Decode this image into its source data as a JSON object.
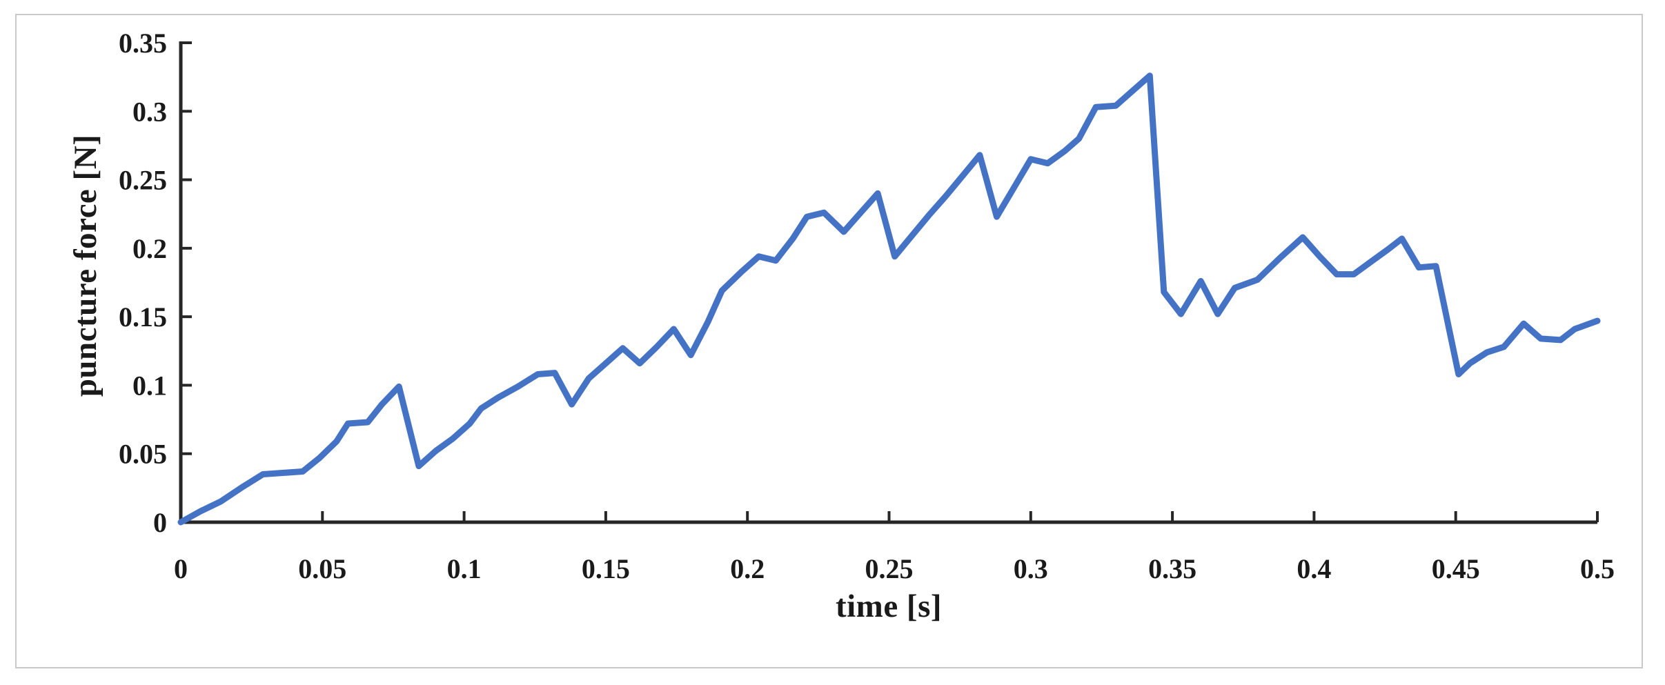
{
  "figure": {
    "background": "#ffffff",
    "frame_border_color": "#c9c9c9",
    "axis_color": "#262626",
    "text_color": "#1a1a1a"
  },
  "chart_data": {
    "type": "line",
    "title": "",
    "xlabel": "time [s]",
    "ylabel": "puncture force [N]",
    "xlim": [
      0,
      0.5
    ],
    "ylim": [
      0,
      0.35
    ],
    "grid": "off",
    "legend": "none",
    "tick_style": "inside",
    "line_color": "#4472C4",
    "x_ticks": [
      0,
      0.05,
      0.1,
      0.15,
      0.2,
      0.25,
      0.3,
      0.35,
      0.4,
      0.45,
      0.5
    ],
    "x_tick_labels": [
      "0",
      "0.05",
      "0.1",
      "0.15",
      "0.2",
      "0.25",
      "0.3",
      "0.35",
      "0.4",
      "0.45",
      "0.5"
    ],
    "y_ticks": [
      0,
      0.05,
      0.1,
      0.15,
      0.2,
      0.25,
      0.3,
      0.35
    ],
    "y_tick_labels": [
      "0",
      "0.05",
      "0.1",
      "0.15",
      "0.2",
      "0.25",
      "0.3",
      "0.35"
    ],
    "series": [
      {
        "name": "puncture force",
        "points": [
          [
            0.0,
            0.0
          ],
          [
            0.007,
            0.008
          ],
          [
            0.014,
            0.015
          ],
          [
            0.022,
            0.026
          ],
          [
            0.029,
            0.035
          ],
          [
            0.036,
            0.036
          ],
          [
            0.043,
            0.037
          ],
          [
            0.049,
            0.047
          ],
          [
            0.055,
            0.059
          ],
          [
            0.059,
            0.072
          ],
          [
            0.066,
            0.073
          ],
          [
            0.071,
            0.086
          ],
          [
            0.077,
            0.099
          ],
          [
            0.084,
            0.041
          ],
          [
            0.09,
            0.052
          ],
          [
            0.096,
            0.061
          ],
          [
            0.102,
            0.072
          ],
          [
            0.106,
            0.083
          ],
          [
            0.112,
            0.091
          ],
          [
            0.119,
            0.099
          ],
          [
            0.126,
            0.108
          ],
          [
            0.132,
            0.109
          ],
          [
            0.138,
            0.086
          ],
          [
            0.144,
            0.105
          ],
          [
            0.15,
            0.116
          ],
          [
            0.156,
            0.127
          ],
          [
            0.162,
            0.116
          ],
          [
            0.168,
            0.128
          ],
          [
            0.174,
            0.141
          ],
          [
            0.18,
            0.122
          ],
          [
            0.186,
            0.146
          ],
          [
            0.191,
            0.169
          ],
          [
            0.198,
            0.183
          ],
          [
            0.204,
            0.194
          ],
          [
            0.21,
            0.191
          ],
          [
            0.216,
            0.207
          ],
          [
            0.221,
            0.223
          ],
          [
            0.227,
            0.226
          ],
          [
            0.234,
            0.212
          ],
          [
            0.24,
            0.226
          ],
          [
            0.246,
            0.24
          ],
          [
            0.252,
            0.194
          ],
          [
            0.258,
            0.209
          ],
          [
            0.264,
            0.224
          ],
          [
            0.27,
            0.238
          ],
          [
            0.276,
            0.253
          ],
          [
            0.282,
            0.268
          ],
          [
            0.288,
            0.223
          ],
          [
            0.294,
            0.244
          ],
          [
            0.3,
            0.265
          ],
          [
            0.306,
            0.262
          ],
          [
            0.312,
            0.271
          ],
          [
            0.317,
            0.28
          ],
          [
            0.323,
            0.303
          ],
          [
            0.33,
            0.304
          ],
          [
            0.336,
            0.315
          ],
          [
            0.342,
            0.326
          ],
          [
            0.347,
            0.168
          ],
          [
            0.353,
            0.152
          ],
          [
            0.36,
            0.176
          ],
          [
            0.366,
            0.152
          ],
          [
            0.372,
            0.171
          ],
          [
            0.38,
            0.177
          ],
          [
            0.388,
            0.193
          ],
          [
            0.396,
            0.208
          ],
          [
            0.402,
            0.194
          ],
          [
            0.408,
            0.181
          ],
          [
            0.414,
            0.181
          ],
          [
            0.42,
            0.19
          ],
          [
            0.426,
            0.199
          ],
          [
            0.431,
            0.207
          ],
          [
            0.437,
            0.186
          ],
          [
            0.443,
            0.187
          ],
          [
            0.451,
            0.108
          ],
          [
            0.455,
            0.116
          ],
          [
            0.461,
            0.124
          ],
          [
            0.467,
            0.128
          ],
          [
            0.474,
            0.145
          ],
          [
            0.48,
            0.134
          ],
          [
            0.487,
            0.133
          ],
          [
            0.492,
            0.141
          ],
          [
            0.5,
            0.147
          ]
        ]
      }
    ]
  }
}
